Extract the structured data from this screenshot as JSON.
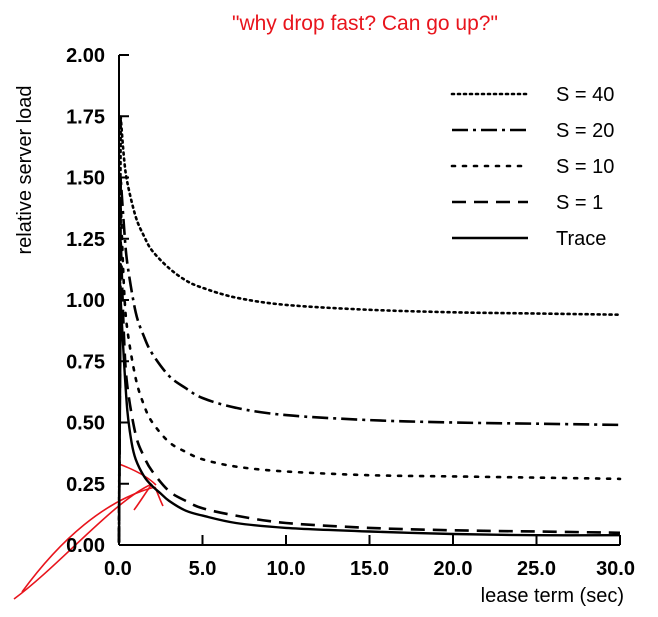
{
  "annotation": {
    "text": "\"why drop fast?  Can go up?\"",
    "color": "#e8141c"
  },
  "chart_data": {
    "type": "line",
    "title": "",
    "xlabel": "lease term (sec)",
    "ylabel": "relative server load",
    "xlim": [
      0,
      30
    ],
    "ylim": [
      0,
      2
    ],
    "x_ticks": [
      "0.0",
      "5.0",
      "10.0",
      "15.0",
      "20.0",
      "25.0",
      "30.0"
    ],
    "y_ticks": [
      "0.00",
      "0.25",
      "0.50",
      "0.75",
      "1.00",
      "1.25",
      "1.50",
      "1.75",
      "2.00"
    ],
    "grid": false,
    "legend_position": "top-right",
    "series": [
      {
        "name": "S = 40",
        "dash": "2,4",
        "x": [
          0.1,
          0.3,
          0.5,
          1,
          1.5,
          2,
          3,
          4,
          5,
          7,
          10,
          15,
          20,
          25,
          30
        ],
        "y": [
          1.75,
          1.58,
          1.48,
          1.34,
          1.26,
          1.2,
          1.13,
          1.08,
          1.05,
          1.01,
          0.98,
          0.96,
          0.95,
          0.945,
          0.94
        ]
      },
      {
        "name": "S = 20",
        "dash": "16,5,3,5",
        "x": [
          0.1,
          0.3,
          0.5,
          1,
          1.5,
          2,
          3,
          4,
          5,
          7,
          10,
          15,
          20,
          25,
          30
        ],
        "y": [
          1.5,
          1.3,
          1.15,
          0.95,
          0.85,
          0.78,
          0.69,
          0.64,
          0.6,
          0.56,
          0.53,
          0.51,
          0.5,
          0.495,
          0.49
        ]
      },
      {
        "name": "S = 10",
        "dash": "3,8",
        "x": [
          0.1,
          0.3,
          0.5,
          1,
          1.5,
          2,
          3,
          4,
          5,
          7,
          10,
          15,
          20,
          25,
          30
        ],
        "y": [
          1.4,
          1.05,
          0.88,
          0.68,
          0.57,
          0.5,
          0.42,
          0.38,
          0.35,
          0.32,
          0.3,
          0.285,
          0.28,
          0.275,
          0.27
        ]
      },
      {
        "name": "S = 1",
        "dash": "14,8",
        "x": [
          0.1,
          0.3,
          0.5,
          1,
          1.5,
          2,
          3,
          4,
          5,
          7,
          10,
          15,
          20,
          25,
          30
        ],
        "y": [
          1.25,
          0.85,
          0.65,
          0.45,
          0.36,
          0.3,
          0.22,
          0.18,
          0.15,
          0.12,
          0.09,
          0.07,
          0.06,
          0.055,
          0.05
        ]
      },
      {
        "name": "Trace",
        "dash": "",
        "x": [
          0.1,
          0.3,
          0.5,
          0.75,
          1,
          1.5,
          2,
          2.5,
          3,
          4,
          5,
          7,
          10,
          15,
          20,
          25,
          30
        ],
        "y": [
          1.0,
          0.75,
          0.55,
          0.42,
          0.35,
          0.28,
          0.24,
          0.21,
          0.18,
          0.14,
          0.12,
          0.09,
          0.07,
          0.055,
          0.045,
          0.04,
          0.04
        ]
      }
    ]
  }
}
